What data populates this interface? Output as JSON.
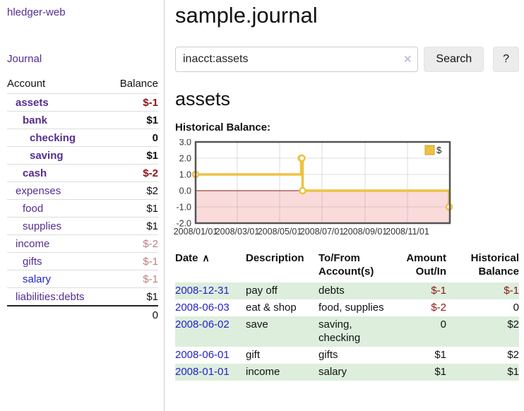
{
  "app": {
    "title": "hledger-web"
  },
  "sidebar": {
    "nav_journal": "Journal",
    "accounts": {
      "col_account": "Account",
      "col_balance": "Balance",
      "rows": [
        {
          "name": "assets",
          "balance": "$-1",
          "depth": 1,
          "bold": true,
          "balance_style": "neg-strong"
        },
        {
          "name": "bank",
          "balance": "$1",
          "depth": 2,
          "bold": true,
          "balance_style": "pos"
        },
        {
          "name": "checking",
          "balance": "0",
          "depth": 3,
          "bold": true,
          "balance_style": "pos"
        },
        {
          "name": "saving",
          "balance": "$1",
          "depth": 3,
          "bold": true,
          "balance_style": "pos"
        },
        {
          "name": "cash",
          "balance": "$-2",
          "depth": 2,
          "bold": true,
          "balance_style": "neg-strong"
        },
        {
          "name": "expenses",
          "balance": "$2",
          "depth": 1,
          "bold": false,
          "balance_style": "pos"
        },
        {
          "name": "food",
          "balance": "$1",
          "depth": 2,
          "bold": false,
          "balance_style": "pos"
        },
        {
          "name": "supplies",
          "balance": "$1",
          "depth": 2,
          "bold": false,
          "balance_style": "pos"
        },
        {
          "name": "income",
          "balance": "$-2",
          "depth": 1,
          "bold": false,
          "balance_style": "neg-faded"
        },
        {
          "name": "gifts",
          "balance": "$-1",
          "depth": 2,
          "bold": false,
          "balance_style": "neg-faded"
        },
        {
          "name": "salary",
          "balance": "$-1",
          "depth": 2,
          "bold": false,
          "balance_style": "neg-faded",
          "link_style": "blue"
        },
        {
          "name": "liabilities:debts",
          "balance": "$1",
          "depth": 1,
          "bold": false,
          "balance_style": "pos"
        }
      ],
      "total": "0"
    }
  },
  "main": {
    "journal_title": "sample.journal",
    "search": {
      "value": "inacct:assets",
      "clear": "×",
      "search_label": "Search",
      "help_label": "?"
    },
    "account_heading": "assets",
    "chart_heading": "Historical Balance:"
  },
  "chart_data": {
    "type": "line",
    "title": "Historical Balance of assets",
    "step": true,
    "x_start": "2008-01-01",
    "x_end": "2009-01-01",
    "ylim": [
      -2,
      3
    ],
    "yticks": [
      "3.0",
      "2.0",
      "1.0",
      "0.0",
      "-1.0",
      "-2.0"
    ],
    "xticks": [
      "2008/01/01",
      "2008/03/01",
      "2008/05/01",
      "2008/07/01",
      "2008/09/01",
      "2008/11/01"
    ],
    "series": [
      {
        "name": "$",
        "color": "#edc240",
        "points": [
          [
            "2008-01-01",
            1
          ],
          [
            "2008-06-01",
            2
          ],
          [
            "2008-06-02",
            2
          ],
          [
            "2008-06-03",
            0
          ],
          [
            "2008-12-31",
            -1
          ]
        ]
      }
    ],
    "legend_label": "$",
    "legend_position": "top-right",
    "grid": true,
    "negative_region_fill": "#fadada",
    "zero_line_color": "#8b1a1a"
  },
  "register": {
    "headers": {
      "date": "Date",
      "sort_icon": "∧",
      "description": "Description",
      "accounts": "To/From\nAccount(s)",
      "amount": "Amount\nOut/In",
      "balance": "Historical\nBalance"
    },
    "rows": [
      {
        "date": "2008-12-31",
        "description": "pay off",
        "accounts": "debts",
        "amount": "$-1",
        "balance": "$-1",
        "amount_negative": true,
        "balance_negative": true
      },
      {
        "date": "2008-06-03",
        "description": "eat & shop",
        "accounts": "food, supplies",
        "amount": "$-2",
        "balance": "0",
        "amount_negative": true,
        "balance_negative": false
      },
      {
        "date": "2008-06-02",
        "description": "save",
        "accounts": "saving, checking",
        "amount": "0",
        "balance": "$2",
        "amount_negative": false,
        "balance_negative": false
      },
      {
        "date": "2008-06-01",
        "description": "gift",
        "accounts": "gifts",
        "amount": "$1",
        "balance": "$2",
        "amount_negative": false,
        "balance_negative": false
      },
      {
        "date": "2008-01-01",
        "description": "income",
        "accounts": "salary",
        "amount": "$1",
        "balance": "$1",
        "amount_negative": false,
        "balance_negative": false
      }
    ]
  },
  "colors": {
    "link_purple": "#552d90",
    "link_blue": "#2222cc",
    "negative_strong": "#8f1414",
    "negative_faded": "#bd7e7e",
    "row_green": "#ddeedd",
    "chart_line": "#edc240",
    "chart_negative_fill": "#fadada"
  }
}
